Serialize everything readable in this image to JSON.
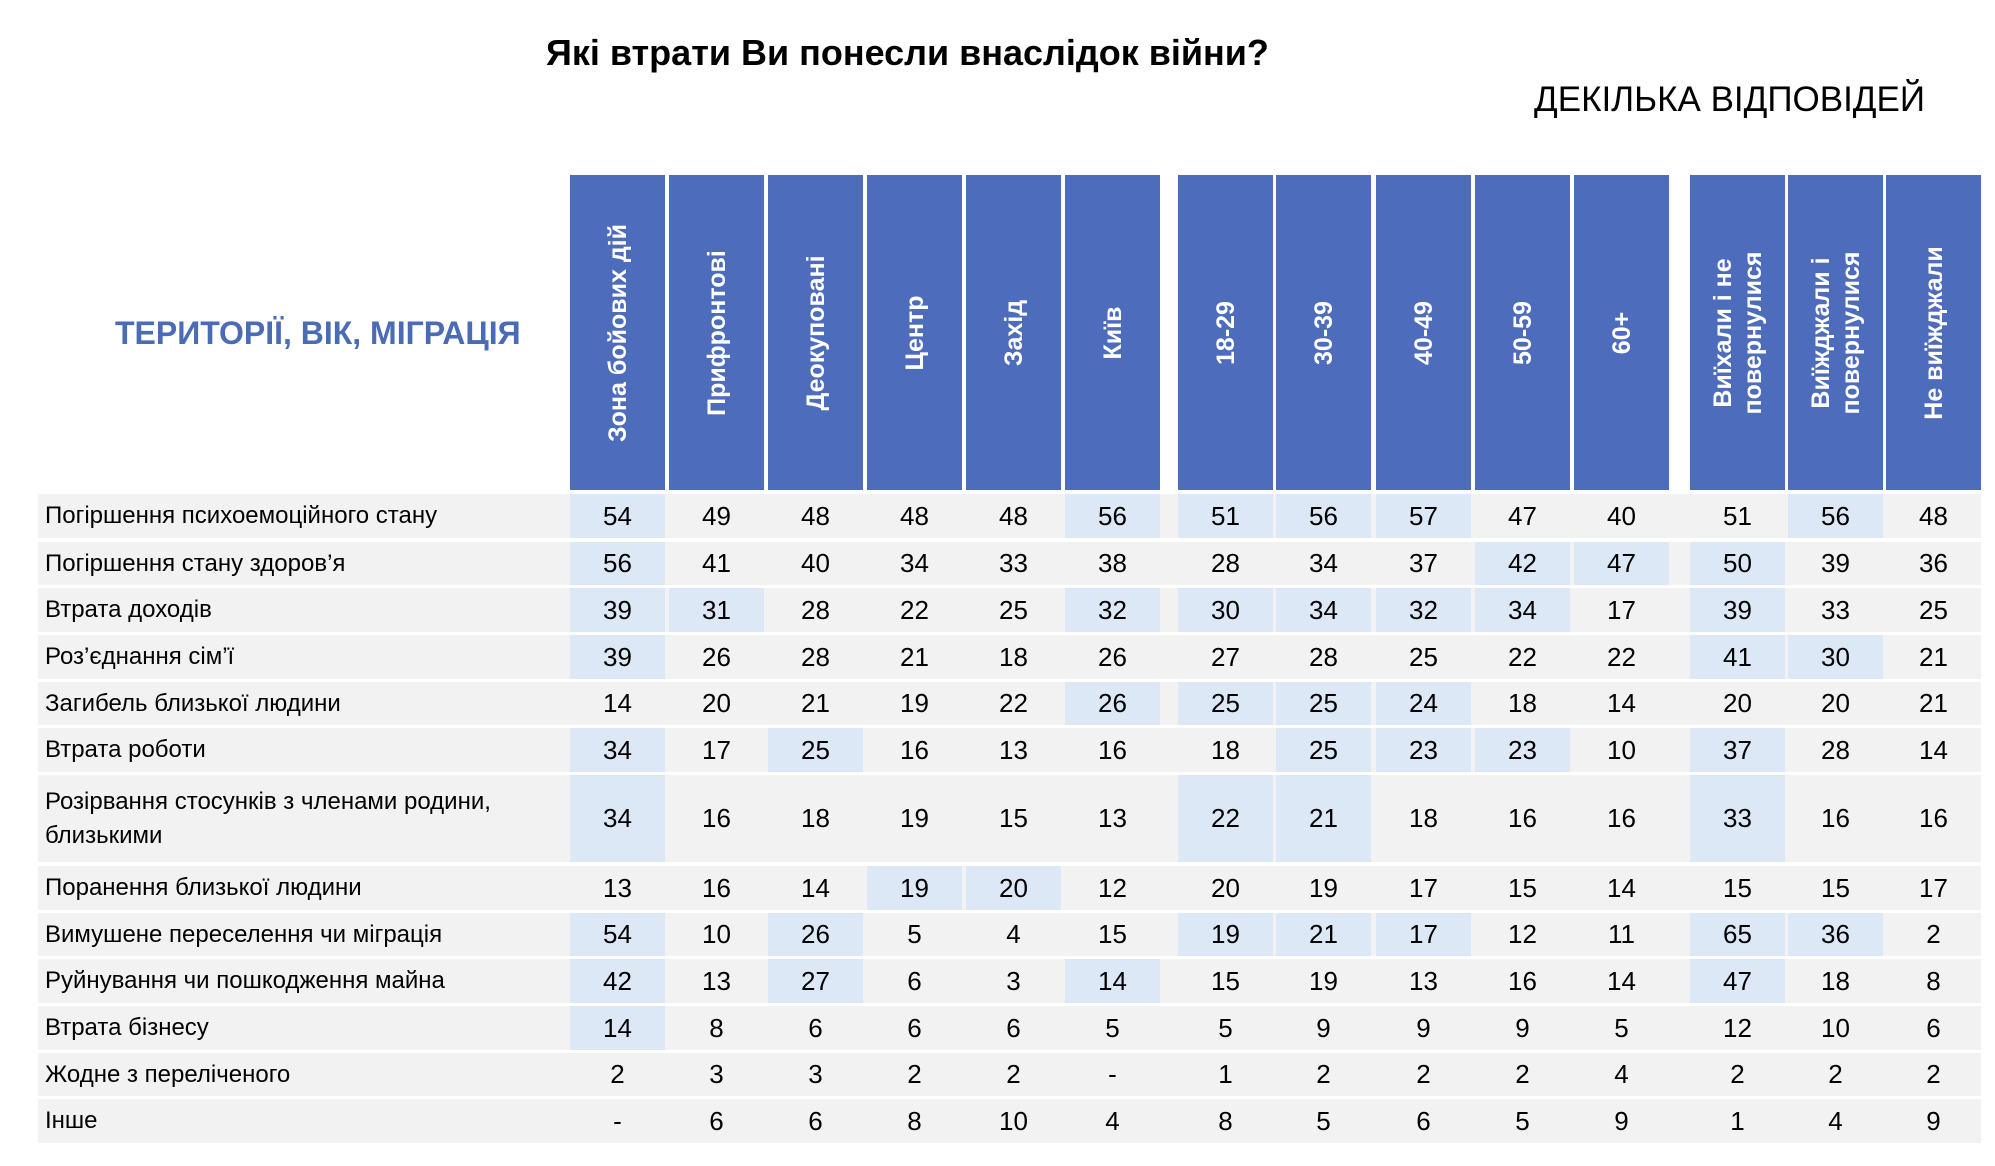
{
  "title": "Які втрати Ви понесли внаслідок війни?",
  "subtitle": "ДЕКІЛЬКА ВІДПОВІДЕЙ",
  "section_label": "ТЕРИТОРІЇ, ВІК, МІГРАЦІЯ",
  "colors": {
    "header_bg": "#4e6cbc",
    "highlight_bg": "#dde8f6",
    "row_bg": "#f2f2f2",
    "section_label": "#4a6bb5"
  },
  "chart_data": {
    "type": "table",
    "columns": [
      [
        "Зона бойових дій"
      ],
      [
        "Прифронтові"
      ],
      [
        "Деокуповані"
      ],
      [
        "Центр"
      ],
      [
        "Захід"
      ],
      [
        "Київ"
      ],
      [
        "18-29"
      ],
      [
        "30-39"
      ],
      [
        "40-49"
      ],
      [
        "50-59"
      ],
      [
        "60+"
      ],
      [
        "Виїхали і не",
        "повернулися"
      ],
      [
        "Виїжджали і",
        "повернулися"
      ],
      [
        "Не виїжджали"
      ]
    ],
    "rows": [
      {
        "label": [
          "Погіршення психоемоційного стану"
        ],
        "values": [
          "54",
          "49",
          "48",
          "48",
          "48",
          "56",
          "51",
          "56",
          "57",
          "47",
          "40",
          "51",
          "56",
          "48"
        ],
        "highlight": [
          true,
          false,
          false,
          false,
          false,
          true,
          true,
          true,
          true,
          false,
          false,
          false,
          true,
          false
        ]
      },
      {
        "label": [
          "Погіршення стану здоров’я"
        ],
        "values": [
          "56",
          "41",
          "40",
          "34",
          "33",
          "38",
          "28",
          "34",
          "37",
          "42",
          "47",
          "50",
          "39",
          "36"
        ],
        "highlight": [
          true,
          false,
          false,
          false,
          false,
          false,
          false,
          false,
          false,
          true,
          true,
          true,
          false,
          false
        ]
      },
      {
        "label": [
          "Втрата доходів"
        ],
        "values": [
          "39",
          "31",
          "28",
          "22",
          "25",
          "32",
          "30",
          "34",
          "32",
          "34",
          "17",
          "39",
          "33",
          "25"
        ],
        "highlight": [
          true,
          true,
          false,
          false,
          false,
          true,
          true,
          true,
          true,
          true,
          false,
          true,
          false,
          false
        ]
      },
      {
        "label": [
          "Роз’єднання сім’ї"
        ],
        "values": [
          "39",
          "26",
          "28",
          "21",
          "18",
          "26",
          "27",
          "28",
          "25",
          "22",
          "22",
          "41",
          "30",
          "21"
        ],
        "highlight": [
          true,
          false,
          false,
          false,
          false,
          false,
          false,
          false,
          false,
          false,
          false,
          true,
          true,
          false
        ]
      },
      {
        "label": [
          "Загибель близької людини"
        ],
        "values": [
          "14",
          "20",
          "21",
          "19",
          "22",
          "26",
          "25",
          "25",
          "24",
          "18",
          "14",
          "20",
          "20",
          "21"
        ],
        "highlight": [
          false,
          false,
          false,
          false,
          false,
          true,
          true,
          true,
          true,
          false,
          false,
          false,
          false,
          false
        ]
      },
      {
        "label": [
          "Втрата роботи"
        ],
        "values": [
          "34",
          "17",
          "25",
          "16",
          "13",
          "16",
          "18",
          "25",
          "23",
          "23",
          "10",
          "37",
          "28",
          "14"
        ],
        "highlight": [
          true,
          false,
          true,
          false,
          false,
          false,
          false,
          true,
          true,
          true,
          false,
          true,
          false,
          false
        ]
      },
      {
        "label": [
          "Розірвання стосунків з членами родини,",
          "близькими"
        ],
        "values": [
          "34",
          "16",
          "18",
          "19",
          "15",
          "13",
          "22",
          "21",
          "18",
          "16",
          "16",
          "33",
          "16",
          "16"
        ],
        "highlight": [
          true,
          false,
          false,
          false,
          false,
          false,
          true,
          true,
          false,
          false,
          false,
          true,
          false,
          false
        ]
      },
      {
        "label": [
          "Поранення близької людини"
        ],
        "values": [
          "13",
          "16",
          "14",
          "19",
          "20",
          "12",
          "20",
          "19",
          "17",
          "15",
          "14",
          "15",
          "15",
          "17"
        ],
        "highlight": [
          false,
          false,
          false,
          true,
          true,
          false,
          false,
          false,
          false,
          false,
          false,
          false,
          false,
          false
        ]
      },
      {
        "label": [
          "Вимушене переселення чи міграція"
        ],
        "values": [
          "54",
          "10",
          "26",
          "5",
          "4",
          "15",
          "19",
          "21",
          "17",
          "12",
          "11",
          "65",
          "36",
          "2"
        ],
        "highlight": [
          true,
          false,
          true,
          false,
          false,
          false,
          true,
          true,
          true,
          false,
          false,
          true,
          true,
          false
        ]
      },
      {
        "label": [
          "Руйнування чи пошкодження майна"
        ],
        "values": [
          "42",
          "13",
          "27",
          "6",
          "3",
          "14",
          "15",
          "19",
          "13",
          "16",
          "14",
          "47",
          "18",
          "8"
        ],
        "highlight": [
          true,
          false,
          true,
          false,
          false,
          true,
          false,
          false,
          false,
          false,
          false,
          true,
          false,
          false
        ]
      },
      {
        "label": [
          "Втрата бізнесу"
        ],
        "values": [
          "14",
          "8",
          "6",
          "6",
          "6",
          "5",
          "5",
          "9",
          "9",
          "9",
          "5",
          "12",
          "10",
          "6"
        ],
        "highlight": [
          true,
          false,
          false,
          false,
          false,
          false,
          false,
          false,
          false,
          false,
          false,
          false,
          false,
          false
        ]
      },
      {
        "label": [
          "Жодне з переліченого"
        ],
        "values": [
          "2",
          "3",
          "3",
          "2",
          "2",
          "-",
          "1",
          "2",
          "2",
          "2",
          "4",
          "2",
          "2",
          "2"
        ],
        "highlight": [
          false,
          false,
          false,
          false,
          false,
          false,
          false,
          false,
          false,
          false,
          false,
          false,
          false,
          false
        ]
      },
      {
        "label": [
          "Інше"
        ],
        "values": [
          "-",
          "6",
          "6",
          "8",
          "10",
          "4",
          "8",
          "5",
          "6",
          "5",
          "9",
          "1",
          "4",
          "9"
        ],
        "highlight": [
          false,
          false,
          false,
          false,
          false,
          false,
          false,
          false,
          false,
          false,
          false,
          false,
          false,
          false
        ]
      }
    ]
  }
}
